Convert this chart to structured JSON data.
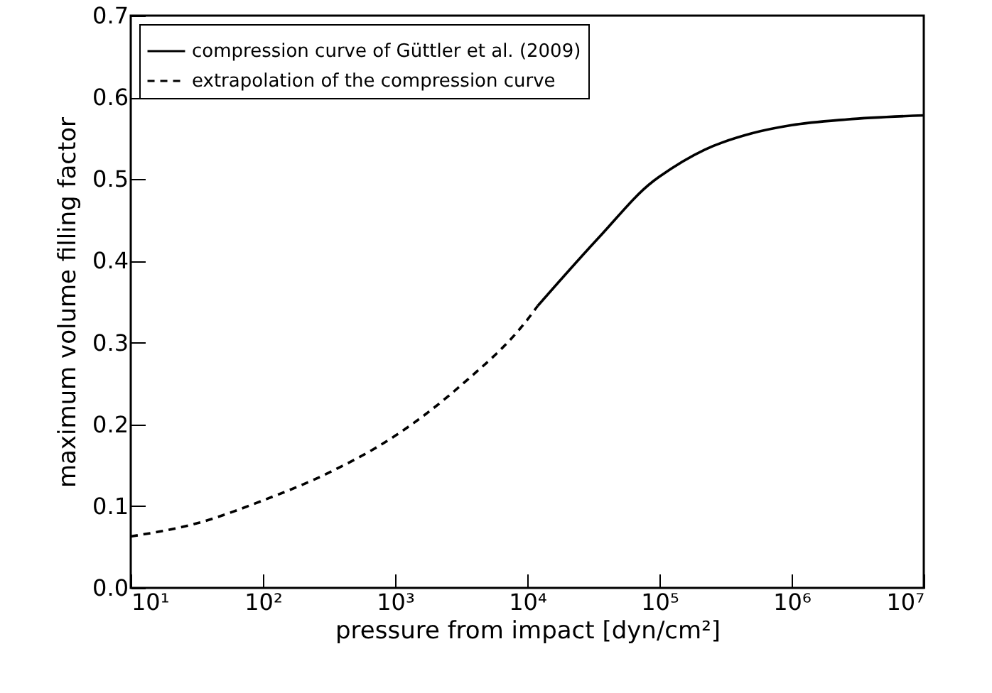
{
  "chart_data": {
    "type": "line",
    "xlabel": "pressure from impact [dyn/cm²]",
    "ylabel": "maximum volume filling factor",
    "log": "x",
    "xlim": [
      10,
      10000000
    ],
    "xticks": [
      {
        "value": 10,
        "label": "10¹"
      },
      {
        "value": 100,
        "label": "10²"
      },
      {
        "value": 1000,
        "label": "10³"
      },
      {
        "value": 10000,
        "label": "10⁴"
      },
      {
        "value": 100000,
        "label": "10⁵"
      },
      {
        "value": 1000000,
        "label": "10⁶"
      },
      {
        "value": 10000000,
        "label": "10⁷"
      }
    ],
    "ylim": [
      0,
      0.7
    ],
    "yticks": [
      {
        "value": 0,
        "label": "0.0"
      },
      0.1,
      0.2,
      0.3,
      0.4,
      0.5,
      0.6,
      0.7
    ],
    "grid": false,
    "legend": "top left",
    "marker": "none",
    "series": [
      {
        "name": "compression curve of Güttler et al. (2009)",
        "color": "#000000",
        "line_style": "solid",
        "x": [
          12000,
          35000,
          89000,
          100000,
          220000,
          500000,
          1000000,
          2600000,
          10000000
        ],
        "values": [
          0.345,
          0.429,
          0.497,
          0.503,
          0.536,
          0.556,
          0.566,
          0.573,
          0.578
        ]
      },
      {
        "name": "extrapolation of the compression curve",
        "color": "#000000",
        "line_style": "dashed",
        "x": [
          10,
          31.6,
          100,
          316,
          1000,
          3162,
          10000,
          12000
        ],
        "values": [
          0.063,
          0.079,
          0.107,
          0.141,
          0.186,
          0.248,
          0.328,
          0.345
        ]
      }
    ]
  }
}
